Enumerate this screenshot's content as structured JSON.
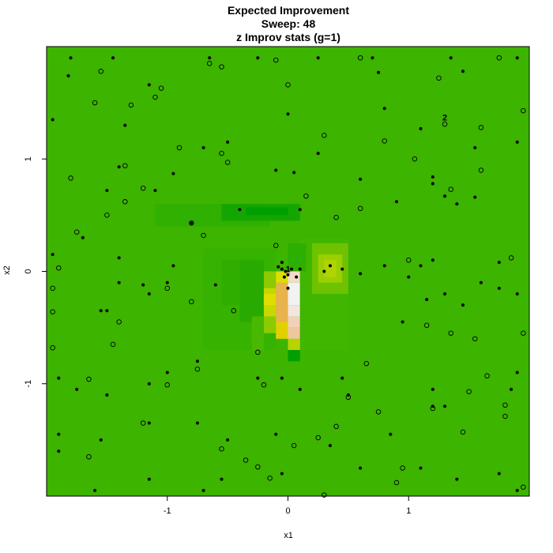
{
  "chart_data": {
    "type": "heatmap",
    "title": "Expected Improvement",
    "subtitle_lines": [
      "Sweep: 48",
      "z Improv stats (g=1)"
    ],
    "xlabel": "x1",
    "ylabel": "x2",
    "xlim": [
      -2,
      2
    ],
    "ylim": [
      -2,
      2
    ],
    "xticks": [
      -1,
      0,
      1
    ],
    "yticks": [
      -1,
      0,
      1
    ],
    "tick_labels_x": [
      "-1",
      "0",
      "1"
    ],
    "tick_labels_y": [
      "-1",
      "0",
      "1"
    ],
    "background_color": "#3cb400",
    "grid": false,
    "legend": "none",
    "cells": [
      {
        "x0": -1.1,
        "x1": -0.15,
        "y0": 0.4,
        "y1": 0.6,
        "color": "#30b000"
      },
      {
        "x0": -0.55,
        "x1": 0.1,
        "y0": 0.45,
        "y1": 0.6,
        "color": "#14a600"
      },
      {
        "x0": -0.35,
        "x1": 0.0,
        "y0": 0.5,
        "y1": 0.57,
        "color": "#009f00"
      },
      {
        "x0": -0.7,
        "x1": -0.1,
        "y0": -0.7,
        "y1": 0.2,
        "color": "#36b200"
      },
      {
        "x0": -0.55,
        "x1": -0.2,
        "y0": -0.3,
        "y1": 0.1,
        "color": "#2fae00"
      },
      {
        "x0": -0.4,
        "x1": -0.2,
        "y0": -0.45,
        "y1": 0.1,
        "color": "#28aa00"
      },
      {
        "x0": -0.3,
        "x1": -0.2,
        "y0": -0.7,
        "y1": -0.4,
        "color": "#48b800"
      },
      {
        "x0": -0.2,
        "x1": -0.1,
        "y0": -0.55,
        "y1": 0.0,
        "color": "#8ccb00"
      },
      {
        "x0": -0.2,
        "x1": -0.1,
        "y0": -0.4,
        "y1": -0.15,
        "color": "#c6d800"
      },
      {
        "x0": -0.2,
        "x1": -0.1,
        "y0": -0.3,
        "y1": -0.2,
        "color": "#dede00"
      },
      {
        "x0": -0.1,
        "x1": 0.0,
        "y0": -0.6,
        "y1": -0.1,
        "color": "#e2d000"
      },
      {
        "x0": -0.1,
        "x1": 0.0,
        "y0": -0.45,
        "y1": -0.1,
        "color": "#e8b24c"
      },
      {
        "x0": -0.1,
        "x1": 0.0,
        "y0": -0.1,
        "y1": 0.0,
        "color": "#dede00"
      },
      {
        "x0": 0.0,
        "x1": 0.1,
        "y0": -0.7,
        "y1": -0.6,
        "color": "#dede00"
      },
      {
        "x0": 0.0,
        "x1": 0.1,
        "y0": -0.6,
        "y1": -0.5,
        "color": "#eec79f"
      },
      {
        "x0": 0.0,
        "x1": 0.1,
        "y0": -0.5,
        "y1": -0.4,
        "color": "#f0d2b8"
      },
      {
        "x0": 0.0,
        "x1": 0.1,
        "y0": -0.4,
        "y1": -0.3,
        "color": "#f2e6de"
      },
      {
        "x0": 0.0,
        "x1": 0.1,
        "y0": -0.3,
        "y1": -0.1,
        "color": "#f2f2f2"
      },
      {
        "x0": 0.0,
        "x1": 0.1,
        "y0": -0.1,
        "y1": 0.0,
        "color": "#f0dcc8"
      },
      {
        "x0": 0.0,
        "x1": 0.1,
        "y0": 0.0,
        "y1": 0.1,
        "color": "#e8c25a"
      },
      {
        "x0": 0.0,
        "x1": 0.1,
        "y0": -0.7,
        "y1": -0.6,
        "color": "#b8d400"
      },
      {
        "x0": 0.0,
        "x1": 0.1,
        "y0": -0.8,
        "y1": -0.7,
        "color": "#00a000"
      },
      {
        "x0": 0.1,
        "x1": 0.5,
        "y0": -0.7,
        "y1": 0.3,
        "color": "#40b600"
      },
      {
        "x0": 0.2,
        "x1": 0.5,
        "y0": -0.2,
        "y1": 0.25,
        "color": "#6ec200"
      },
      {
        "x0": 0.25,
        "x1": 0.45,
        "y0": -0.1,
        "y1": 0.15,
        "color": "#9ccf00"
      },
      {
        "x0": 0.3,
        "x1": 0.4,
        "y0": -0.05,
        "y1": 0.1,
        "color": "#b0d400"
      },
      {
        "x0": 0.0,
        "x1": 0.15,
        "y0": 0.0,
        "y1": 0.25,
        "color": "#2caf00"
      }
    ],
    "points_filled": [
      [
        -1.8,
        1.9
      ],
      [
        -1.45,
        1.9
      ],
      [
        -0.65,
        1.9
      ],
      [
        -0.25,
        1.9
      ],
      [
        0.25,
        1.9
      ],
      [
        0.7,
        1.9
      ],
      [
        1.35,
        1.9
      ],
      [
        1.9,
        1.9
      ],
      [
        -1.82,
        1.74
      ],
      [
        -1.15,
        1.66
      ],
      [
        0.75,
        1.77
      ],
      [
        1.45,
        1.78
      ],
      [
        -1.95,
        1.35
      ],
      [
        -1.35,
        1.3
      ],
      [
        0.0,
        1.4
      ],
      [
        0.8,
        1.45
      ],
      [
        1.1,
        1.27
      ],
      [
        -0.5,
        1.15
      ],
      [
        -0.7,
        1.1
      ],
      [
        0.25,
        1.05
      ],
      [
        1.55,
        1.1
      ],
      [
        1.9,
        1.15
      ],
      [
        -1.4,
        0.93
      ],
      [
        -0.95,
        0.87
      ],
      [
        -0.1,
        0.9
      ],
      [
        0.05,
        0.88
      ],
      [
        0.6,
        0.82
      ],
      [
        1.2,
        0.84
      ],
      [
        1.55,
        0.66
      ],
      [
        1.4,
        0.6
      ],
      [
        0.9,
        0.62
      ],
      [
        1.2,
        0.78
      ],
      [
        -1.5,
        0.72
      ],
      [
        -1.1,
        0.72
      ],
      [
        -0.4,
        0.55
      ],
      [
        0.1,
        0.55
      ],
      [
        1.3,
        0.67
      ],
      [
        -1.7,
        0.3
      ],
      [
        -0.8,
        0.43
      ],
      [
        -0.95,
        0.05
      ],
      [
        -1.95,
        0.15
      ],
      [
        1.75,
        0.08
      ],
      [
        -1.4,
        0.12
      ],
      [
        -1.4,
        -0.1
      ],
      [
        -1.2,
        -0.12
      ],
      [
        -1.55,
        -0.35
      ],
      [
        -1.5,
        -0.35
      ],
      [
        -1.15,
        -0.2
      ],
      [
        -1.0,
        -0.1
      ],
      [
        -0.6,
        -0.12
      ],
      [
        0.6,
        -0.02
      ],
      [
        0.8,
        0.05
      ],
      [
        1.0,
        -0.05
      ],
      [
        1.2,
        0.1
      ],
      [
        1.1,
        0.05
      ],
      [
        1.15,
        -0.25
      ],
      [
        1.3,
        -0.2
      ],
      [
        1.6,
        -0.1
      ],
      [
        1.75,
        -0.15
      ],
      [
        1.9,
        -0.2
      ],
      [
        0.95,
        -0.45
      ],
      [
        1.45,
        -0.3
      ],
      [
        -1.9,
        -0.95
      ],
      [
        -1.75,
        -1.05
      ],
      [
        -1.9,
        -1.45
      ],
      [
        -1.5,
        -1.1
      ],
      [
        -1.15,
        -1.0
      ],
      [
        -1.0,
        -0.9
      ],
      [
        -0.75,
        -0.8
      ],
      [
        -0.25,
        -0.95
      ],
      [
        -0.05,
        -0.95
      ],
      [
        0.1,
        -1.05
      ],
      [
        0.5,
        -1.1
      ],
      [
        0.45,
        -0.95
      ],
      [
        1.2,
        -1.05
      ],
      [
        1.3,
        -1.2
      ],
      [
        1.85,
        -1.05
      ],
      [
        1.9,
        -0.9
      ],
      [
        -1.9,
        -1.6
      ],
      [
        -1.55,
        -1.5
      ],
      [
        -1.15,
        -1.35
      ],
      [
        -0.75,
        -1.35
      ],
      [
        -0.5,
        -1.5
      ],
      [
        -0.1,
        -1.45
      ],
      [
        0.35,
        -1.55
      ],
      [
        0.85,
        -1.45
      ],
      [
        1.2,
        -1.2
      ],
      [
        -1.15,
        -1.85
      ],
      [
        -0.55,
        -1.85
      ],
      [
        -0.05,
        -1.8
      ],
      [
        0.6,
        -1.75
      ],
      [
        1.1,
        -1.75
      ],
      [
        1.75,
        -1.8
      ],
      [
        1.9,
        -1.95
      ],
      [
        -1.6,
        -1.95
      ],
      [
        -0.7,
        -1.95
      ],
      [
        1.4,
        -1.85
      ],
      [
        -0.05,
        0.02
      ],
      [
        -0.02,
        0.0
      ],
      [
        0.0,
        -0.03
      ],
      [
        0.03,
        0.02
      ],
      [
        -0.03,
        -0.05
      ],
      [
        -0.08,
        0.04
      ],
      [
        0.07,
        -0.05
      ],
      [
        0.0,
        -0.15
      ],
      [
        0.1,
        0.02
      ],
      [
        -0.05,
        0.08
      ],
      [
        0.3,
        0.0
      ],
      [
        0.35,
        0.05
      ],
      [
        0.45,
        0.02
      ]
    ],
    "points_open": [
      [
        -0.65,
        1.85
      ],
      [
        -0.1,
        1.88
      ],
      [
        -1.55,
        1.78
      ],
      [
        -0.55,
        1.82
      ],
      [
        0.6,
        1.9
      ],
      [
        -1.05,
        1.63
      ],
      [
        -1.1,
        1.55
      ],
      [
        -1.6,
        1.5
      ],
      [
        -1.3,
        1.48
      ],
      [
        0.0,
        1.66
      ],
      [
        1.25,
        1.72
      ],
      [
        1.75,
        1.9
      ],
      [
        1.95,
        1.43
      ],
      [
        1.3,
        1.31
      ],
      [
        1.6,
        1.28
      ],
      [
        0.3,
        1.21
      ],
      [
        0.8,
        1.16
      ],
      [
        -0.9,
        1.1
      ],
      [
        -0.55,
        1.05
      ],
      [
        -0.5,
        0.97
      ],
      [
        1.05,
        1.0
      ],
      [
        1.6,
        0.9
      ],
      [
        -1.35,
        0.94
      ],
      [
        -1.8,
        0.83
      ],
      [
        -1.2,
        0.74
      ],
      [
        -1.35,
        0.62
      ],
      [
        0.15,
        0.67
      ],
      [
        0.6,
        0.56
      ],
      [
        1.35,
        0.73
      ],
      [
        -1.5,
        0.5
      ],
      [
        -0.8,
        0.43
      ],
      [
        -0.7,
        0.32
      ],
      [
        -1.75,
        0.35
      ],
      [
        0.4,
        0.48
      ],
      [
        -0.1,
        0.23
      ],
      [
        1.0,
        0.1
      ],
      [
        1.85,
        0.12
      ],
      [
        -1.9,
        0.03
      ],
      [
        -1.0,
        -0.15
      ],
      [
        -0.8,
        -0.27
      ],
      [
        -0.45,
        -0.35
      ],
      [
        -1.95,
        -0.36
      ],
      [
        -1.4,
        -0.45
      ],
      [
        -1.45,
        -0.65
      ],
      [
        1.35,
        -0.55
      ],
      [
        1.55,
        -0.6
      ],
      [
        1.15,
        -0.48
      ],
      [
        1.95,
        -0.55
      ],
      [
        -1.95,
        -0.68
      ],
      [
        -0.75,
        -0.87
      ],
      [
        -0.25,
        -0.72
      ],
      [
        0.65,
        -0.82
      ],
      [
        -1.65,
        -0.96
      ],
      [
        -1.0,
        -1.01
      ],
      [
        1.65,
        -0.93
      ],
      [
        -0.2,
        -1.01
      ],
      [
        0.5,
        -1.12
      ],
      [
        1.5,
        -1.07
      ],
      [
        1.2,
        -1.22
      ],
      [
        1.8,
        -1.19
      ],
      [
        0.75,
        -1.25
      ],
      [
        -1.2,
        -1.35
      ],
      [
        0.4,
        -1.38
      ],
      [
        1.45,
        -1.43
      ],
      [
        0.25,
        -1.48
      ],
      [
        -0.55,
        -1.58
      ],
      [
        -0.35,
        -1.68
      ],
      [
        0.05,
        -1.55
      ],
      [
        1.8,
        -1.29
      ],
      [
        -1.65,
        -1.65
      ],
      [
        -0.25,
        -1.74
      ],
      [
        0.95,
        -1.75
      ],
      [
        -0.15,
        -1.84
      ],
      [
        0.3,
        -1.99
      ],
      [
        0.9,
        -1.88
      ],
      [
        1.95,
        -1.92
      ],
      [
        -1.95,
        -0.15
      ]
    ],
    "annotations": [
      {
        "text": "1",
        "x": 0.0,
        "y": 0.02
      },
      {
        "text": "2",
        "x": 1.3,
        "y": 1.37
      }
    ]
  }
}
